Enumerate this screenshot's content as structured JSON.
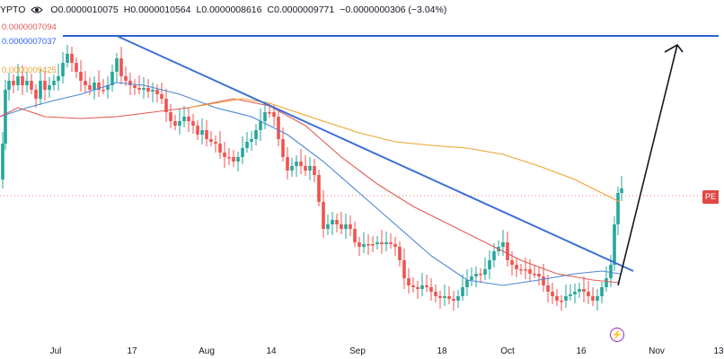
{
  "header": {
    "symbol": "YPTO",
    "open": "O0.0000010075",
    "high": "H0.0000010564",
    "low": "L0.0000008616",
    "close": "C0.0000009771",
    "change": "−0.0000000306 (−3.04%)"
  },
  "indicators": [
    {
      "label": "0.0000007094",
      "color": "#e15a57"
    },
    {
      "label": "0.0000007037",
      "color": "#2962ff"
    },
    {
      "label": "0.0000009425",
      "color": "#f0a232"
    }
  ],
  "price_tag": "PE",
  "colors": {
    "up": "#26a69a",
    "down": "#ef5350",
    "trend": "#3d6fd6",
    "resistance": "#2a5fd0",
    "arrow": "#131722"
  },
  "xaxis": {
    "labels": [
      "Jul",
      "17",
      "Aug",
      "14",
      "Sep",
      "18",
      "Oct",
      "16",
      "Nov",
      "13"
    ]
  },
  "chart_data": {
    "type": "candlestick",
    "x_ticks": [
      "Jul",
      "17",
      "Aug",
      "14",
      "Sep",
      "18",
      "Oct",
      "16",
      "Nov",
      "13"
    ],
    "candle_count": 110,
    "series": [
      {
        "kind": "candles"
      },
      {
        "kind": "ma",
        "color": "#e15a57"
      },
      {
        "kind": "ma",
        "color": "#2962ff"
      },
      {
        "kind": "ma",
        "color": "#f0a232"
      }
    ],
    "annotations": [
      "horizontal resistance line",
      "descending trendline",
      "upward projection arrow"
    ]
  }
}
